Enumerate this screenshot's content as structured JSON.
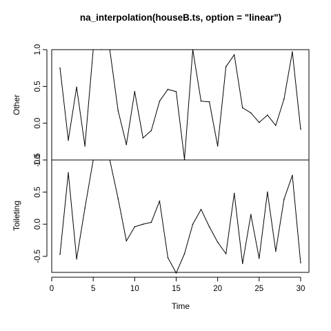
{
  "chart_data": {
    "type": "line",
    "title": "na_interpolation(houseB.ts, option = \"linear\")",
    "xlabel": "Time",
    "xlim": [
      0,
      31
    ],
    "x_ticks": [
      0,
      5,
      10,
      15,
      20,
      25,
      30
    ],
    "x": [
      1,
      2,
      3,
      4,
      5,
      6,
      7,
      8,
      9,
      10,
      11,
      12,
      13,
      14,
      15,
      16,
      17,
      18,
      19,
      20,
      21,
      22,
      23,
      24,
      25,
      26,
      27,
      28,
      29,
      30
    ],
    "grid": false,
    "panels": [
      {
        "ylabel": "Other",
        "ylim": [
          -0.5,
          1.0
        ],
        "y_ticks": [
          -0.5,
          0.0,
          0.5,
          1.0
        ],
        "y_tick_labels": [
          "-0.5",
          "0.0",
          "0.5",
          "1.0"
        ],
        "values": [
          0.75,
          -0.23,
          0.49,
          -0.31,
          1.0,
          1.0,
          1.0,
          0.17,
          -0.29,
          0.43,
          -0.2,
          -0.1,
          0.3,
          0.46,
          0.43,
          -0.49,
          1.0,
          0.3,
          0.29,
          -0.31,
          0.77,
          0.93,
          0.21,
          0.14,
          0.01,
          0.11,
          -0.03,
          0.33,
          0.97,
          -0.08
        ]
      },
      {
        "ylabel": "Toileting",
        "ylim": [
          -0.75,
          1.0
        ],
        "y_ticks": [
          -0.5,
          0.0,
          0.5,
          1.0
        ],
        "y_tick_labels": [
          "-0.5",
          "0.0",
          "0.5",
          "1.0"
        ],
        "values": [
          -0.47,
          0.8,
          -0.54,
          0.25,
          1.0,
          1.0,
          1.0,
          0.4,
          -0.26,
          -0.04,
          0.0,
          0.03,
          0.36,
          -0.52,
          -0.76,
          -0.46,
          0.0,
          0.23,
          -0.04,
          -0.28,
          -0.46,
          0.48,
          -0.61,
          0.15,
          -0.53,
          0.5,
          -0.42,
          0.39,
          0.76,
          -0.6
        ]
      }
    ]
  }
}
